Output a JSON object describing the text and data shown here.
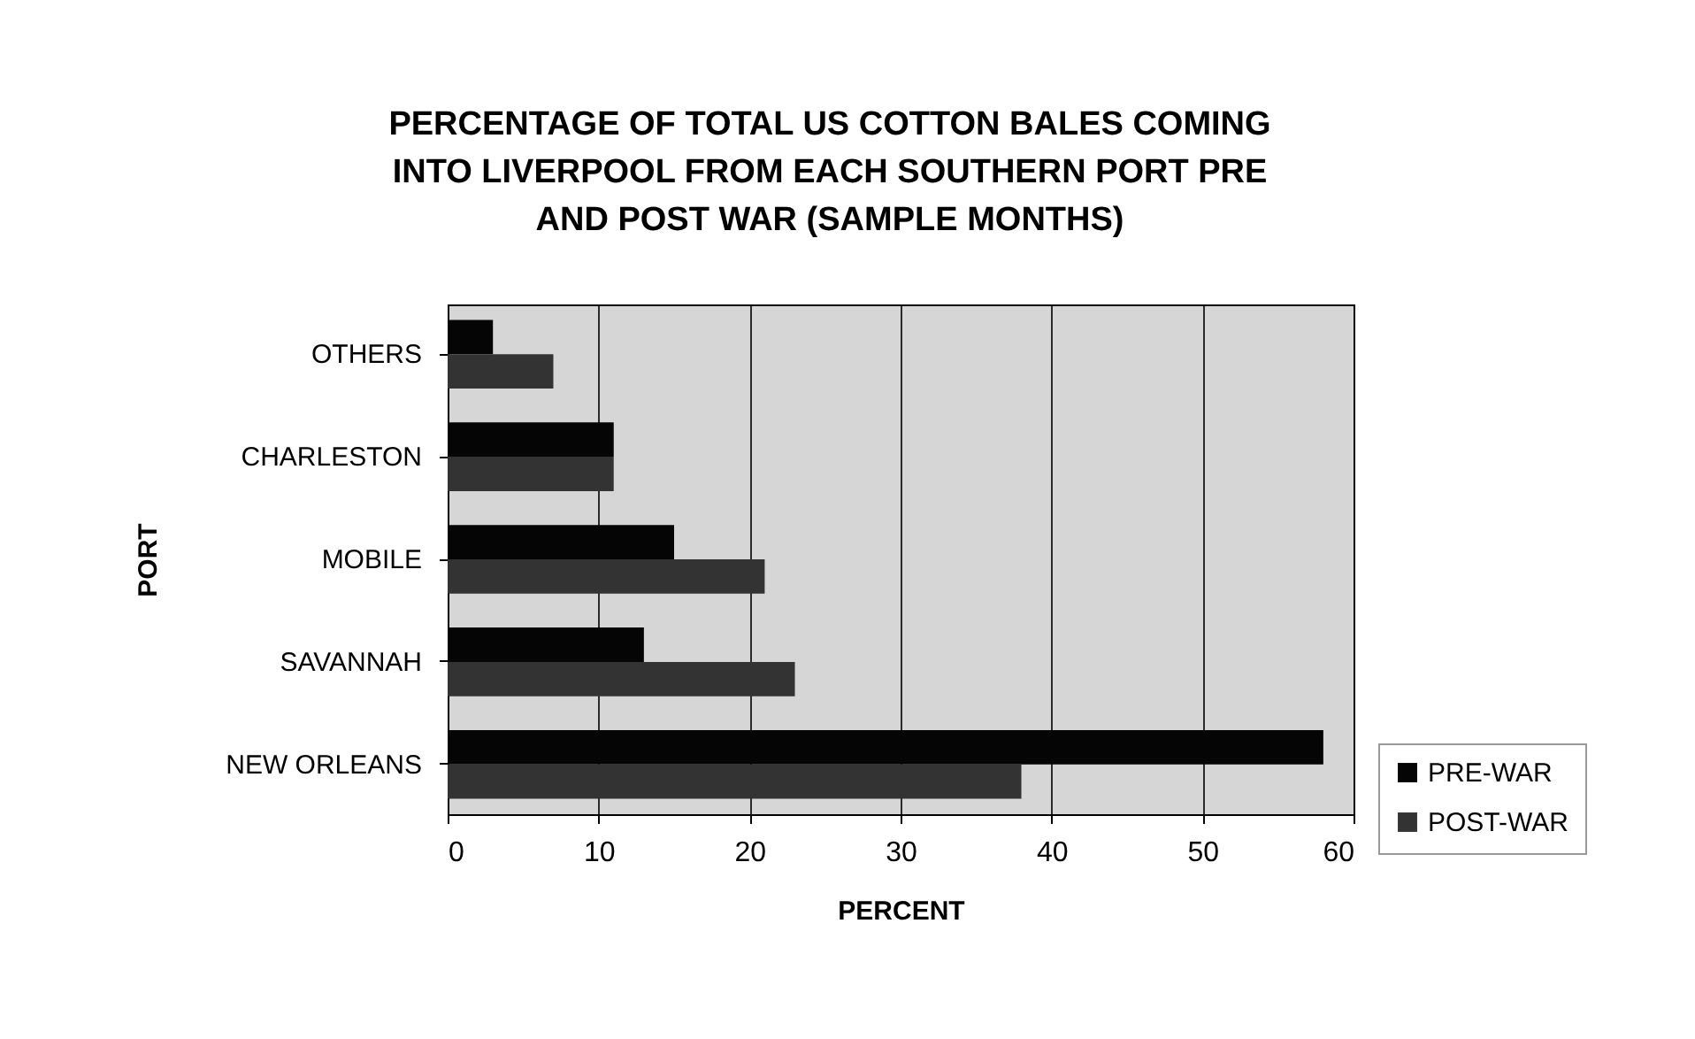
{
  "chart_data": {
    "type": "bar",
    "orientation": "horizontal",
    "title": "PERCENTAGE OF TOTAL US COTTON BALES COMING INTO LIVERPOOL FROM EACH SOUTHERN PORT PRE AND POST WAR (SAMPLE MONTHS)",
    "xlabel": "PERCENT",
    "ylabel": "PORT",
    "categories": [
      "OTHERS",
      "CHARLESTON",
      "MOBILE",
      "SAVANNAH",
      "NEW ORLEANS"
    ],
    "series": [
      {
        "name": "PRE-WAR",
        "color": "#050505",
        "values": [
          3,
          11,
          15,
          13,
          58
        ]
      },
      {
        "name": "POST-WAR",
        "color": "#333333",
        "values": [
          7,
          11,
          21,
          23,
          38
        ]
      }
    ],
    "xlim": [
      0,
      60
    ],
    "xticks": [
      0,
      10,
      20,
      30,
      40,
      50,
      60
    ],
    "grid": "x",
    "legend": "bottom right"
  }
}
